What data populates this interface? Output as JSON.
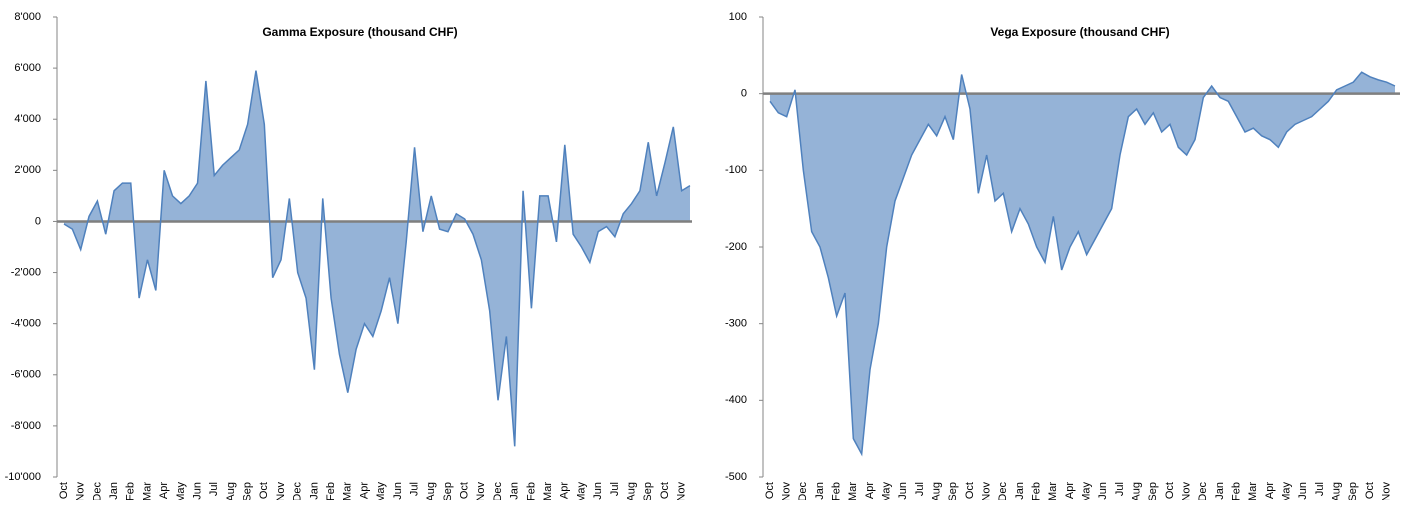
{
  "chart_data": [
    {
      "type": "area",
      "title": "Gamma Exposure  (thousand CHF)",
      "categories": [
        "Oct",
        null,
        "Nov",
        null,
        "Dec",
        null,
        "Jan",
        null,
        "Feb",
        null,
        "Mar",
        null,
        "Apr",
        null,
        "May",
        null,
        "Jun",
        null,
        "Jul",
        null,
        "Aug",
        null,
        "Sep",
        null,
        "Oct",
        null,
        "Nov",
        null,
        "Dec",
        null,
        "Jan",
        null,
        "Feb",
        null,
        "Mar",
        null,
        "Apr",
        null,
        "May",
        null,
        "Jun",
        null,
        "Jul",
        null,
        "Aug",
        null,
        "Sep",
        null,
        "Oct",
        null,
        "Nov",
        null,
        "Dec",
        null,
        "Jan",
        null,
        "Feb",
        null,
        "Mar",
        null,
        "Apr",
        null,
        "May",
        null,
        "Jun",
        null,
        "Jul",
        null,
        "Aug",
        null,
        "Sep",
        null,
        "Oct",
        null,
        "Nov",
        null
      ],
      "series": [
        {
          "color": "#4f81bd",
          "fill": "#95b3d7",
          "values": [
            -100,
            -300,
            -1100,
            200,
            800,
            -500,
            1200,
            1500,
            1500,
            -3000,
            -1500,
            -2700,
            2000,
            1000,
            700,
            1000,
            1500,
            5500,
            1800,
            2200,
            2500,
            2800,
            3800,
            5900,
            3800,
            -2200,
            -1500,
            900,
            -2000,
            -3000,
            -5800,
            900,
            -3000,
            -5200,
            -6700,
            -5000,
            -4000,
            -4500,
            -3500,
            -2200,
            -4000,
            -800,
            2900,
            -400,
            1000,
            -300,
            -400,
            300,
            100,
            -500,
            -1500,
            -3500,
            -7000,
            -4500,
            -8800,
            1200,
            -3400,
            1000,
            1000,
            -800,
            3000,
            -500,
            -1000,
            -1600,
            -400,
            -200,
            -600,
            300,
            700,
            1200,
            3100,
            1000,
            2300,
            3700,
            1200,
            1400
          ]
        }
      ],
      "ylim": [
        -10000,
        8000
      ],
      "yticks": [
        {
          "value": -10000,
          "label": "-10'000"
        },
        {
          "value": -8000,
          "label": "-8'000"
        },
        {
          "value": -6000,
          "label": "-6'000"
        },
        {
          "value": -4000,
          "label": "-4'000"
        },
        {
          "value": -2000,
          "label": "-2'000"
        },
        0,
        {
          "value": 2000,
          "label": "2'000"
        },
        {
          "value": 4000,
          "label": "4'000"
        },
        {
          "value": 6000,
          "label": "6'000"
        },
        {
          "value": 8000,
          "label": "8'000"
        }
      ]
    },
    {
      "type": "area",
      "title": "Vega Exposure (thousand CHF)",
      "categories": [
        "Oct",
        null,
        "Nov",
        null,
        "Dec",
        null,
        "Jan",
        null,
        "Feb",
        null,
        "Mar",
        null,
        "Apr",
        null,
        "May",
        null,
        "Jun",
        null,
        "Jul",
        null,
        "Aug",
        null,
        "Sep",
        null,
        "Oct",
        null,
        "Nov",
        null,
        "Dec",
        null,
        "Jan",
        null,
        "Feb",
        null,
        "Mar",
        null,
        "Apr",
        null,
        "May",
        null,
        "Jun",
        null,
        "Jul",
        null,
        "Aug",
        null,
        "Sep",
        null,
        "Oct",
        null,
        "Nov",
        null,
        "Dec",
        null,
        "Jan",
        null,
        "Feb",
        null,
        "Mar",
        null,
        "Apr",
        null,
        "May",
        null,
        "Jun",
        null,
        "Jul",
        null,
        "Aug",
        null,
        "Sep",
        null,
        "Oct",
        null,
        "Nov",
        null
      ],
      "series": [
        {
          "color": "#4f81bd",
          "fill": "#95b3d7",
          "values": [
            -10,
            -25,
            -30,
            5,
            -100,
            -180,
            -200,
            -240,
            -290,
            -260,
            -450,
            -470,
            -360,
            -300,
            -200,
            -140,
            -110,
            -80,
            -60,
            -40,
            -55,
            -30,
            -60,
            25,
            -20,
            -130,
            -80,
            -140,
            -130,
            -180,
            -150,
            -170,
            -200,
            -220,
            -160,
            -230,
            -200,
            -180,
            -210,
            -190,
            -170,
            -150,
            -80,
            -30,
            -20,
            -40,
            -25,
            -50,
            -40,
            -70,
            -80,
            -60,
            -5,
            10,
            -5,
            -10,
            -30,
            -50,
            -45,
            -55,
            -60,
            -70,
            -50,
            -40,
            -35,
            -30,
            -20,
            -10,
            5,
            10,
            15,
            28,
            22,
            18,
            15,
            10
          ]
        }
      ],
      "ylim": [
        -500,
        100
      ],
      "yticks": [
        -500,
        -400,
        -300,
        -200,
        -100,
        0,
        100
      ]
    }
  ]
}
